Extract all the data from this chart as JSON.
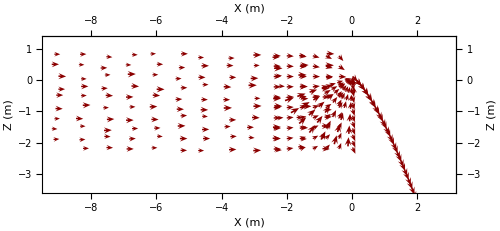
{
  "xlim": [
    -9.5,
    3.2
  ],
  "zlim": [
    -3.6,
    1.4
  ],
  "xlabel": "X (m)",
  "zlabel": "Z (m)",
  "xticks": [
    -8,
    -6,
    -4,
    -2,
    0,
    2
  ],
  "zticks": [
    -3,
    -2,
    -1,
    0,
    1
  ],
  "arrow_color": "#8B0000",
  "background": "#ffffff",
  "figsize": [
    5.0,
    2.31
  ],
  "dpi": 100,
  "tick_labelsize": 7,
  "label_fontsize": 8
}
